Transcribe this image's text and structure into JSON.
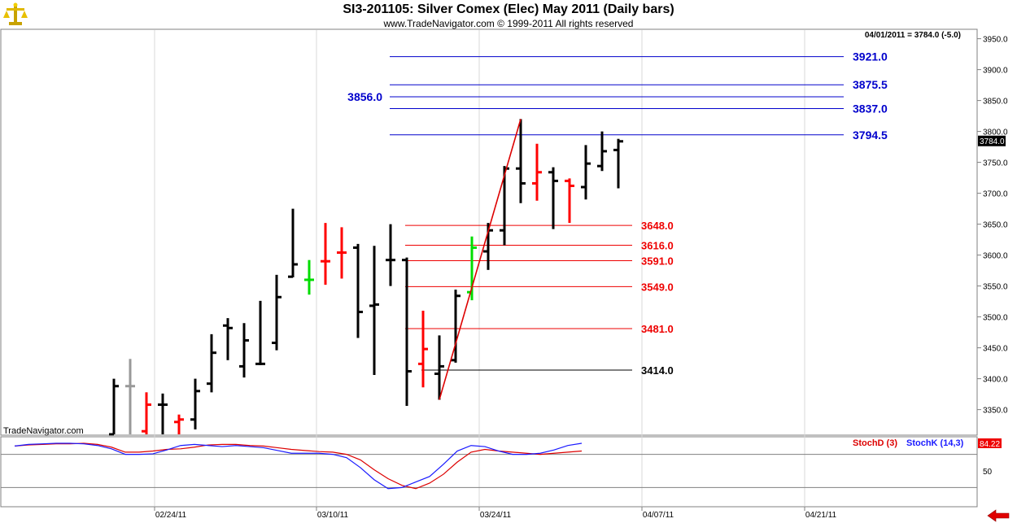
{
  "window": {
    "title": "SI3-201105:  Silver Comex (Elec) May 2011  (Daily bars)",
    "subtitle": "www.TradeNavigator.com © 1999-2011 All rights reserved"
  },
  "colors": {
    "up_bar": "#000000",
    "down_bar": "#ff0000",
    "signal_bar": "#00dd00",
    "neutral_bar": "#999999",
    "blue_level": "#0000cc",
    "red_level": "#ee0000",
    "stoch_d": "#dd0000",
    "stoch_k": "#1a1aff"
  },
  "chart_data": [
    {
      "type": "ohlc",
      "watermark": "TradeNavigator.com",
      "price_readout": "04/01/2011 = 3784.0 (-5.0)",
      "last_price": "3784.0",
      "ylim": [
        3310,
        3960
      ],
      "yticks": [
        "3950.0",
        "3900.0",
        "3850.0",
        "3800.0",
        "3750.0",
        "3700.0",
        "3650.0",
        "3600.0",
        "3550.0",
        "3500.0",
        "3450.0",
        "3400.0",
        "3350.0"
      ],
      "x_ticks": [
        "02/24/11",
        "03/10/11",
        "03/24/11",
        "04/07/11",
        "04/21/11"
      ],
      "bars": [
        {
          "date": "02/16/11",
          "high": 3400,
          "low": 3310,
          "open": 3310,
          "close": 3388,
          "color": "up"
        },
        {
          "date": "02/17/11",
          "high": 3432,
          "low": 3310,
          "open": 3388,
          "close": 3388,
          "color": "neutral"
        },
        {
          "date": "02/18/11",
          "high": 3378,
          "low": 3310,
          "open": 3315,
          "close": 3358,
          "color": "down"
        },
        {
          "date": "02/22/11",
          "high": 3376,
          "low": 3310,
          "open": 3358,
          "close": 3358,
          "color": "up"
        },
        {
          "date": "02/23/11",
          "high": 3342,
          "low": 3310,
          "open": 3330,
          "close": 3334,
          "color": "down"
        },
        {
          "date": "02/24/11",
          "high": 3400,
          "low": 3318,
          "open": 3334,
          "close": 3380,
          "color": "up"
        },
        {
          "date": "02/25/11",
          "high": 3472,
          "low": 3378,
          "open": 3392,
          "close": 3442,
          "color": "up"
        },
        {
          "date": "02/28/11",
          "high": 3498,
          "low": 3430,
          "open": 3486,
          "close": 3482,
          "color": "up"
        },
        {
          "date": "03/01/11",
          "high": 3490,
          "low": 3402,
          "open": 3420,
          "close": 3462,
          "color": "up"
        },
        {
          "date": "03/02/11",
          "high": 3526,
          "low": 3422,
          "open": 3424,
          "close": 3424,
          "color": "up"
        },
        {
          "date": "03/03/11",
          "high": 3568,
          "low": 3446,
          "open": 3458,
          "close": 3532,
          "color": "up"
        },
        {
          "date": "03/04/11",
          "high": 3675,
          "low": 3564,
          "open": 3565,
          "close": 3585,
          "color": "up"
        },
        {
          "date": "03/07/11",
          "high": 3592,
          "low": 3536,
          "open": 3560,
          "close": 3560,
          "color": "signal"
        },
        {
          "date": "03/08/11",
          "high": 3652,
          "low": 3552,
          "open": 3590,
          "close": 3590,
          "color": "down"
        },
        {
          "date": "03/09/11",
          "high": 3645,
          "low": 3562,
          "open": 3604,
          "close": 3604,
          "color": "down"
        },
        {
          "date": "03/10/11",
          "high": 3618,
          "low": 3466,
          "open": 3612,
          "close": 3508,
          "color": "up"
        },
        {
          "date": "03/11/11",
          "high": 3615,
          "low": 3406,
          "open": 3518,
          "close": 3520,
          "color": "up"
        },
        {
          "date": "03/14/11",
          "high": 3650,
          "low": 3550,
          "open": 3592,
          "close": 3592,
          "color": "up"
        },
        {
          "date": "03/15/11",
          "high": 3596,
          "low": 3356,
          "open": 3592,
          "close": 3412,
          "color": "up"
        },
        {
          "date": "03/16/11",
          "high": 3510,
          "low": 3386,
          "open": 3424,
          "close": 3448,
          "color": "down"
        },
        {
          "date": "03/17/11",
          "high": 3470,
          "low": 3366,
          "open": 3408,
          "close": 3420,
          "color": "up"
        },
        {
          "date": "03/18/11",
          "high": 3544,
          "low": 3426,
          "open": 3430,
          "close": 3534,
          "color": "up"
        },
        {
          "date": "03/21/11",
          "high": 3630,
          "low": 3527,
          "open": 3540,
          "close": 3612,
          "color": "signal"
        },
        {
          "date": "03/22/11",
          "high": 3652,
          "low": 3576,
          "open": 3606,
          "close": 3640,
          "color": "up"
        },
        {
          "date": "03/23/11",
          "high": 3744,
          "low": 3616,
          "open": 3640,
          "close": 3740,
          "color": "up"
        },
        {
          "date": "03/24/11",
          "high": 3820,
          "low": 3684,
          "open": 3740,
          "close": 3716,
          "color": "up"
        },
        {
          "date": "03/25/11",
          "high": 3780,
          "low": 3688,
          "open": 3716,
          "close": 3734,
          "color": "down"
        },
        {
          "date": "03/28/11",
          "high": 3742,
          "low": 3642,
          "open": 3734,
          "close": 3720,
          "color": "up"
        },
        {
          "date": "03/29/11",
          "high": 3724,
          "low": 3652,
          "open": 3720,
          "close": 3712,
          "color": "down"
        },
        {
          "date": "03/30/11",
          "high": 3778,
          "low": 3690,
          "open": 3710,
          "close": 3748,
          "color": "up"
        },
        {
          "date": "03/31/11",
          "high": 3800,
          "low": 3736,
          "open": 3744,
          "close": 3768,
          "color": "up"
        },
        {
          "date": "04/01/11",
          "high": 3788,
          "low": 3708,
          "open": 3770,
          "close": 3784,
          "color": "up"
        }
      ],
      "levels": [
        {
          "value": 3921.0,
          "label": "3921.0",
          "color": "blue"
        },
        {
          "value": 3875.5,
          "label": "3875.5",
          "color": "blue"
        },
        {
          "value": 3856.0,
          "label": "3856.0",
          "color": "blue"
        },
        {
          "value": 3837.0,
          "label": "3837.0",
          "color": "blue"
        },
        {
          "value": 3794.5,
          "label": "3794.5",
          "color": "blue"
        },
        {
          "value": 3648.0,
          "label": "3648.0",
          "color": "red"
        },
        {
          "value": 3616.0,
          "label": "3616.0",
          "color": "red"
        },
        {
          "value": 3591.0,
          "label": "3591.0",
          "color": "red"
        },
        {
          "value": 3549.0,
          "label": "3549.0",
          "color": "red"
        },
        {
          "value": 3481.0,
          "label": "3481.0",
          "color": "red"
        },
        {
          "value": 3414.0,
          "label": "3414.0",
          "color": "black"
        }
      ],
      "trendline": {
        "from": {
          "date": "03/17/11",
          "value": 3366
        },
        "to": {
          "date": "03/24/11",
          "value": 3820
        }
      }
    },
    {
      "type": "line",
      "ylim": [
        0,
        100
      ],
      "yticks": [
        "50"
      ],
      "gridlines": [
        80,
        20
      ],
      "series": [
        {
          "name": "StochD (3)",
          "color": "red",
          "values": [
            95,
            97,
            98,
            99,
            99,
            100,
            98,
            93,
            84,
            84,
            86,
            89,
            90,
            93,
            97,
            98,
            98,
            96,
            95,
            92,
            89,
            87,
            85,
            84,
            80,
            70,
            52,
            36,
            24,
            18,
            28,
            44,
            66,
            84,
            89,
            86,
            84,
            82,
            80,
            82,
            84,
            86
          ]
        },
        {
          "name": "StochK (14,3)",
          "color": "blue",
          "values": [
            95,
            98,
            99,
            100,
            100,
            99,
            96,
            90,
            80,
            80,
            81,
            88,
            96,
            98,
            96,
            94,
            96,
            94,
            92,
            87,
            82,
            82,
            82,
            80,
            74,
            56,
            34,
            18,
            20,
            30,
            40,
            62,
            86,
            96,
            94,
            86,
            80,
            80,
            82,
            88,
            96,
            100
          ]
        }
      ],
      "readout": "84.22"
    }
  ]
}
